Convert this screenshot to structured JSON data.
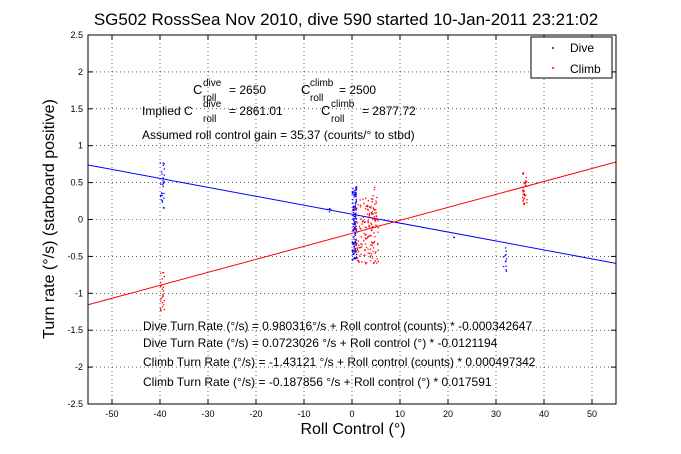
{
  "chart_data": {
    "type": "scatter",
    "title": "SG502 RossSea Nov 2010, dive 590 started 10-Jan-2011 23:21:02",
    "xlabel": "Roll Control (°)",
    "ylabel": "Turn rate (°/s) (starboard positive)",
    "xlim": [
      -55,
      55
    ],
    "ylim": [
      -2.5,
      2.5
    ],
    "xticks": [
      -50,
      -40,
      -30,
      -20,
      -10,
      0,
      10,
      20,
      30,
      40,
      50
    ],
    "yticks": [
      -2.5,
      -2,
      -1.5,
      -1,
      -0.5,
      0,
      0.5,
      1,
      1.5,
      2,
      2.5
    ],
    "grid": true,
    "legend": {
      "position": "top-right",
      "entries": [
        "Dive",
        "Climb"
      ]
    },
    "series": [
      {
        "name": "Dive",
        "color": "#0000ff",
        "fit_line": {
          "slope": -0.0121194,
          "intercept": 0.0723026
        },
        "point_clusters": [
          {
            "x": -39.5,
            "y": [
              0.12,
              0.82
            ],
            "count": 28
          },
          {
            "x": 0.5,
            "y": [
              -0.55,
              0.45
            ],
            "count": 140
          },
          {
            "x": -4.8,
            "y": [
              0.1,
              0.16
            ],
            "count": 5
          },
          {
            "x": 31.8,
            "y": [
              -0.72,
              -0.35
            ],
            "count": 12
          },
          {
            "x": 21,
            "y": [
              -0.25,
              -0.2
            ],
            "count": 2
          }
        ]
      },
      {
        "name": "Climb",
        "color": "#ff0000",
        "fit_line": {
          "slope": 0.017591,
          "intercept": -0.187856
        },
        "point_clusters": [
          {
            "x": -39.5,
            "y": [
              -1.25,
              -0.7
            ],
            "count": 25
          },
          {
            "x": 3,
            "y": [
              -0.6,
              0.3
            ],
            "count": 170
          },
          {
            "x": 36,
            "y": [
              0.2,
              0.65
            ],
            "count": 35
          },
          {
            "x": 4.5,
            "y": [
              -1.1,
              0.75
            ],
            "count": 12
          }
        ]
      }
    ],
    "annotations": {
      "c_dive_label": "C",
      "c_dive_sup": "dive",
      "c_dive_sub": "roll",
      "c_dive_value": "= 2650",
      "c_climb_label": "C",
      "c_climb_sup": "climb",
      "c_climb_sub": "roll",
      "c_climb_value": "= 2500",
      "implied_prefix": "Implied C",
      "implied_dive_sup": "dive",
      "implied_dive_sub": "roll",
      "implied_dive_value": "= 2861.01",
      "implied_climb_label": "C",
      "implied_climb_sup": "climb",
      "implied_climb_sub": "roll",
      "implied_climb_value": "= 2877.72",
      "gain": "Assumed roll control gain = 35.37 (counts/° to stbd)",
      "fit1": "Dive Turn Rate (°/s) = 0.980316°/s + Roll control (counts) * -0.000342647",
      "fit2": "Dive Turn Rate (°/s) = 0.0723026 °/s + Roll control (°) * -0.0121194",
      "fit3": "Climb Turn Rate (°/s) = -1.43121 °/s + Roll control (counts) * 0.000497342",
      "fit4": "Climb Turn Rate (°/s) = -0.187856 °/s + Roll control (°) * 0.017591"
    }
  }
}
